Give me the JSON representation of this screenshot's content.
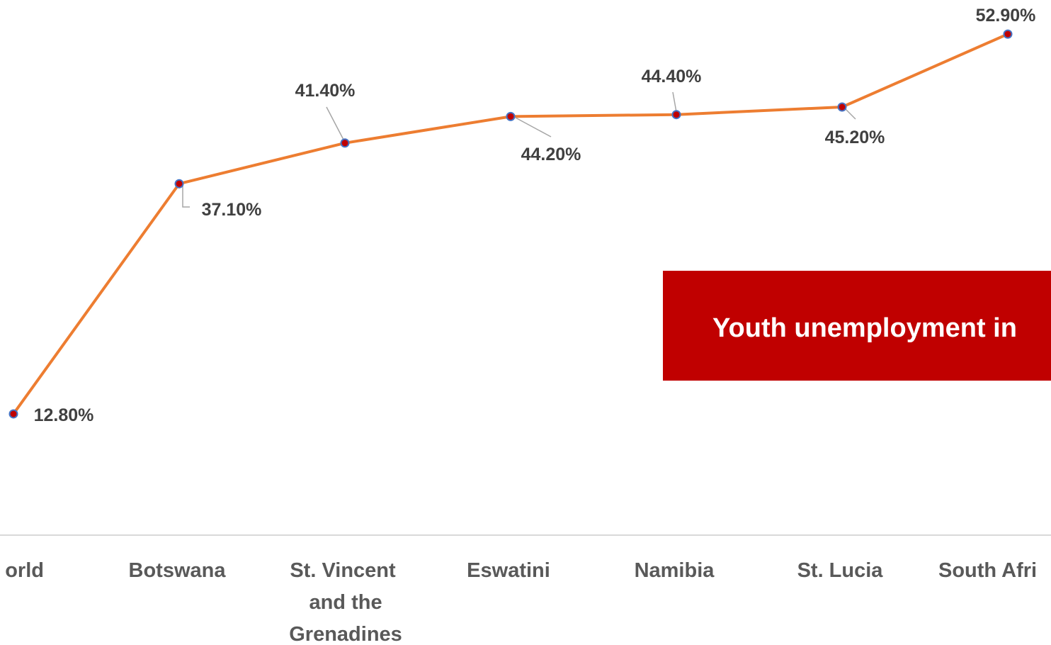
{
  "chart_data": {
    "type": "line",
    "categories": [
      "orld",
      "Botswana",
      "St. Vincent and the Grenadines",
      "Eswatini",
      "Namibia",
      "St. Lucia",
      "South Afri"
    ],
    "series": [
      {
        "name": "Youth unemployment",
        "color": "#ed7d31",
        "values": [
          12.8,
          37.1,
          41.4,
          44.2,
          44.4,
          45.2,
          52.9
        ],
        "value_labels": [
          "12.80%",
          "37.10%",
          "41.40%",
          "44.20%",
          "44.40%",
          "45.20%",
          "52.90%"
        ]
      }
    ],
    "ylim": [
      0,
      56.5
    ],
    "marker_fill": "#c00000",
    "marker_edge": "#4472c4",
    "annotation": {
      "text": "Youth unemployment in",
      "color": "#c00000"
    }
  }
}
